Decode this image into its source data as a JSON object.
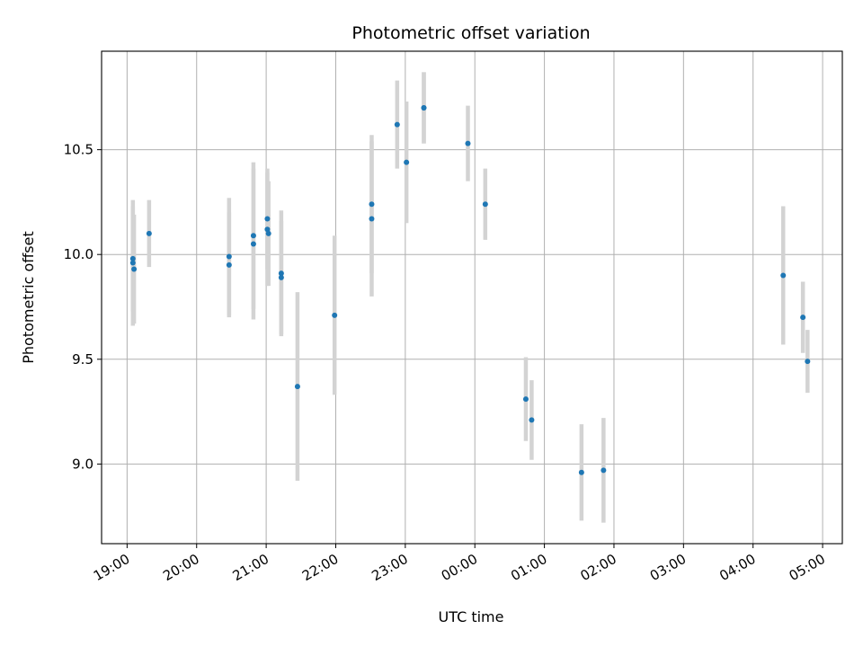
{
  "chart_data": {
    "type": "scatter",
    "title": "Photometric offset variation",
    "xlabel": "UTC time",
    "ylabel": "Photometric offset",
    "grid": true,
    "x_range": [
      "18:38",
      "05:17"
    ],
    "ylim": [
      8.62,
      10.97
    ],
    "x_ticks": [
      "19:00",
      "20:00",
      "21:00",
      "22:00",
      "23:00",
      "00:00",
      "01:00",
      "02:00",
      "03:00",
      "04:00",
      "05:00"
    ],
    "y_ticks": [
      9.0,
      9.5,
      10.0,
      10.5
    ],
    "y_tick_labels": [
      "9.0",
      "9.5",
      "10.0",
      "10.5"
    ],
    "marker_color": "#1f77b4",
    "errorbar_color": "#d3d3d3",
    "points": [
      {
        "x": "19:05",
        "y": 9.98,
        "err": 0.25
      },
      {
        "x": "19:05",
        "y": 9.96,
        "err": 0.3
      },
      {
        "x": "19:06",
        "y": 9.93,
        "err": 0.26
      },
      {
        "x": "19:19",
        "y": 10.1,
        "err": 0.16
      },
      {
        "x": "20:28",
        "y": 9.99,
        "err": 0.28
      },
      {
        "x": "20:28",
        "y": 9.95,
        "err": 0.25
      },
      {
        "x": "20:49",
        "y": 10.09,
        "err": 0.35
      },
      {
        "x": "20:49",
        "y": 10.05,
        "err": 0.36
      },
      {
        "x": "21:01",
        "y": 10.17,
        "err": 0.24
      },
      {
        "x": "21:01",
        "y": 10.12,
        "err": 0.27
      },
      {
        "x": "21:02",
        "y": 10.1,
        "err": 0.25
      },
      {
        "x": "21:13",
        "y": 9.91,
        "err": 0.3
      },
      {
        "x": "21:13",
        "y": 9.89,
        "err": 0.27
      },
      {
        "x": "21:27",
        "y": 9.37,
        "err": 0.45
      },
      {
        "x": "21:59",
        "y": 9.71,
        "err": 0.38
      },
      {
        "x": "22:31",
        "y": 10.24,
        "err": 0.33
      },
      {
        "x": "22:31",
        "y": 10.17,
        "err": 0.37
      },
      {
        "x": "22:53",
        "y": 10.62,
        "err": 0.21
      },
      {
        "x": "23:01",
        "y": 10.44,
        "err": 0.29
      },
      {
        "x": "23:16",
        "y": 10.7,
        "err": 0.17
      },
      {
        "x": "23:16",
        "y": 10.7,
        "err": 0.17
      },
      {
        "x": "23:54",
        "y": 10.53,
        "err": 0.18
      },
      {
        "x": "00:09",
        "y": 10.24,
        "err": 0.17
      },
      {
        "x": "00:44",
        "y": 9.31,
        "err": 0.2
      },
      {
        "x": "00:49",
        "y": 9.21,
        "err": 0.19
      },
      {
        "x": "01:32",
        "y": 8.96,
        "err": 0.23
      },
      {
        "x": "01:51",
        "y": 8.97,
        "err": 0.25
      },
      {
        "x": "04:26",
        "y": 9.9,
        "err": 0.33
      },
      {
        "x": "04:43",
        "y": 9.7,
        "err": 0.17
      },
      {
        "x": "04:47",
        "y": 9.49,
        "err": 0.15
      }
    ]
  }
}
